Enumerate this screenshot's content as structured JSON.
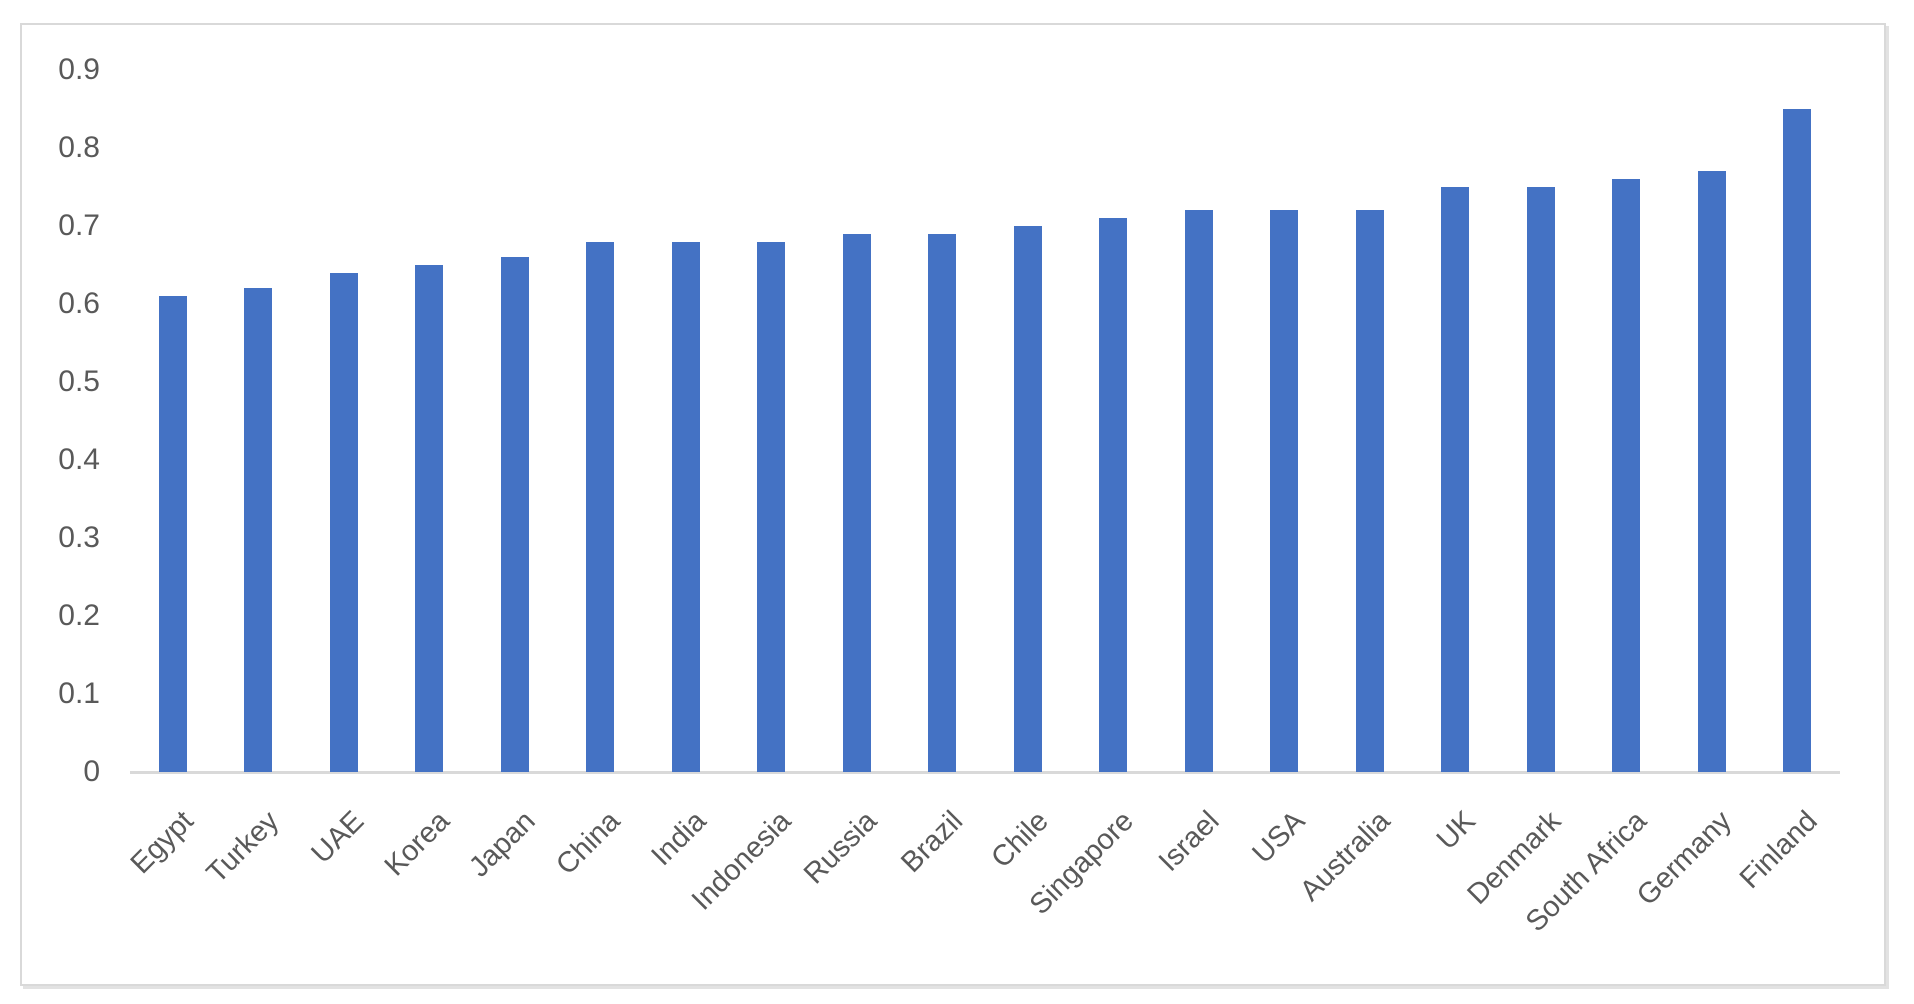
{
  "chart_data": {
    "type": "bar",
    "title": "",
    "xlabel": "",
    "ylabel": "",
    "categories": [
      "Egypt",
      "Turkey",
      "UAE",
      "Korea",
      "Japan",
      "China",
      "India",
      "Indonesia",
      "Russia",
      "Brazil",
      "Chile",
      "Singapore",
      "Israel",
      "USA",
      "Australia",
      "UK",
      "Denmark",
      "South Africa",
      "Germany",
      "Finland"
    ],
    "values": [
      0.61,
      0.62,
      0.64,
      0.65,
      0.66,
      0.68,
      0.68,
      0.68,
      0.69,
      0.69,
      0.7,
      0.71,
      0.72,
      0.72,
      0.72,
      0.75,
      0.75,
      0.76,
      0.77,
      0.85
    ],
    "ylim": [
      0,
      0.9
    ],
    "yticks": [
      0,
      0.1,
      0.2,
      0.3,
      0.4,
      0.5,
      0.6,
      0.7,
      0.8,
      0.9
    ],
    "ytick_labels": [
      "0",
      "0.1",
      "0.2",
      "0.3",
      "0.4",
      "0.5",
      "0.6",
      "0.7",
      "0.8",
      "0.9"
    ],
    "grid": false,
    "legend": "none",
    "x_label_rotation_deg": -45,
    "bar_color": "#4472C4",
    "axis_line_color": "#D9D9D9",
    "label_color": "#595959",
    "frame_border_color": "#D9D9D9"
  }
}
